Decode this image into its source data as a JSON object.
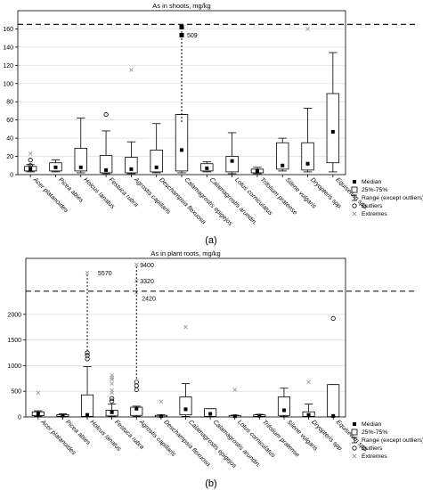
{
  "legend": {
    "median": "Median",
    "box": "25%-75%",
    "range": "Range (except outliers)",
    "outliers": "Outliers",
    "extremes": "Extremes"
  },
  "chart_data": [
    {
      "type": "box",
      "panel": "(a)",
      "title": "As in shoots, mg/kg",
      "ylim": [
        0,
        180
      ],
      "yticks": [
        0,
        20,
        40,
        60,
        80,
        100,
        120,
        140,
        160
      ],
      "threshold": 165,
      "grid": true,
      "legend_position": "bottom-right",
      "categories": [
        "Acer platanoides",
        "Picea abies",
        "Holcus lanatus",
        "Festuca rubra",
        "Agrostis capillaris",
        "Deschampsia flexuosa",
        "Calamagrostis epigejos",
        "Calamagrostis arundin.",
        "Lotus corniculatus",
        "Trifolium pratense",
        "Silene vulgaris",
        "Dryopteris spp.",
        "Equisetum spp."
      ],
      "series": [
        {
          "median": 6,
          "q1": 4,
          "q3": 9,
          "min": 3,
          "max": 11,
          "outliers": [
            10,
            16
          ],
          "extremes": [
            23
          ]
        },
        {
          "median": 8,
          "q1": 4,
          "q3": 13,
          "min": 3,
          "max": 16,
          "outliers": [],
          "extremes": []
        },
        {
          "median": 8,
          "q1": 4,
          "q3": 29,
          "min": 2,
          "max": 62,
          "outliers": [],
          "extremes": []
        },
        {
          "median": 5,
          "q1": 2,
          "q3": 21,
          "min": 1,
          "max": 48,
          "outliers": [
            66
          ],
          "extremes": []
        },
        {
          "median": 6,
          "q1": 2,
          "q3": 19,
          "min": 1,
          "max": 36,
          "outliers": [],
          "extremes": [
            115
          ]
        },
        {
          "median": 8,
          "q1": 3,
          "q3": 27,
          "min": 2,
          "max": 56,
          "outliers": [],
          "extremes": []
        },
        {
          "median": 27,
          "q1": 4,
          "q3": 66,
          "min": 2,
          "max": 66,
          "outliers": [],
          "extremes": [
            509,
            509
          ]
        },
        {
          "median": 7,
          "q1": 4,
          "q3": 12,
          "min": 3,
          "max": 14,
          "outliers": [],
          "extremes": []
        },
        {
          "median": 15,
          "q1": 3,
          "q3": 20,
          "min": 1,
          "max": 46,
          "outliers": [],
          "extremes": []
        },
        {
          "median": 4,
          "q1": 2,
          "q3": 6,
          "min": 1,
          "max": 8,
          "outliers": [],
          "extremes": []
        },
        {
          "median": 10,
          "q1": 6,
          "q3": 35,
          "min": 4,
          "max": 40,
          "outliers": [],
          "extremes": []
        },
        {
          "median": 12,
          "q1": 5,
          "q3": 35,
          "min": 3,
          "max": 73,
          "outliers": [],
          "extremes": [
            160
          ]
        },
        {
          "median": 47,
          "q1": 13,
          "q3": 89,
          "min": 3,
          "max": 134,
          "outliers": [],
          "extremes": []
        }
      ],
      "annotations": [
        "509"
      ]
    },
    {
      "type": "box",
      "panel": "(b)",
      "title": "As in plant roots, mg/kg",
      "ylim": [
        0,
        2800
      ],
      "yticks": [
        0,
        500,
        1000,
        1500,
        2000
      ],
      "threshold": 2450,
      "grid": true,
      "legend_position": "bottom-right",
      "categories": [
        "Acer platanoides",
        "Picea abies",
        "Holcus lanatus",
        "Festuca rubra",
        "Agrostis capillaris",
        "Deschampsia flexuosa",
        "Calamagrostis epigejos",
        "Calamagrostis arundin.",
        "Lotus corniculatus",
        "Trifolium pratense",
        "Silene vulgaris",
        "Dryopteris spp.",
        "Equisetum spp."
      ],
      "series": [
        {
          "median": 60,
          "q1": 25,
          "q3": 100,
          "min": 10,
          "max": 120,
          "outliers": [],
          "extremes": [
            470
          ]
        },
        {
          "median": 25,
          "q1": 10,
          "q3": 45,
          "min": 5,
          "max": 60,
          "outliers": [],
          "extremes": []
        },
        {
          "median": 40,
          "q1": 10,
          "q3": 430,
          "min": 5,
          "max": 980,
          "outliers": [
            1130,
            1200,
            1250
          ],
          "extremes": [
            5570
          ]
        },
        {
          "median": 90,
          "q1": 20,
          "q3": 130,
          "min": 10,
          "max": 250,
          "outliers": [
            310,
            360
          ],
          "extremes": [
            470,
            520,
            650,
            730,
            770,
            810
          ]
        },
        {
          "median": 160,
          "q1": 30,
          "q3": 190,
          "min": 10,
          "max": 210,
          "outliers": [
            530,
            610,
            680
          ],
          "extremes": [
            2420,
            3320,
            9400
          ]
        },
        {
          "median": 15,
          "q1": 5,
          "q3": 30,
          "min": 3,
          "max": 40,
          "outliers": [],
          "extremes": [
            300
          ]
        },
        {
          "median": 150,
          "q1": 40,
          "q3": 390,
          "min": 10,
          "max": 650,
          "outliers": [],
          "extremes": [
            1750
          ]
        },
        {
          "median": 60,
          "q1": 10,
          "q3": 160,
          "min": 5,
          "max": 160,
          "outliers": [],
          "extremes": []
        },
        {
          "median": 15,
          "q1": 5,
          "q3": 25,
          "min": 3,
          "max": 35,
          "outliers": [],
          "extremes": [
            530
          ]
        },
        {
          "median": 25,
          "q1": 10,
          "q3": 40,
          "min": 5,
          "max": 50,
          "outliers": [],
          "extremes": []
        },
        {
          "median": 130,
          "q1": 30,
          "q3": 390,
          "min": 10,
          "max": 560,
          "outliers": [],
          "extremes": []
        },
        {
          "median": 40,
          "q1": 10,
          "q3": 100,
          "min": 5,
          "max": 250,
          "outliers": [],
          "extremes": [
            680
          ]
        },
        {
          "median": 20,
          "q1": 5,
          "q3": 630,
          "min": 3,
          "max": 630,
          "outliers": [
            1920
          ],
          "extremes": []
        }
      ],
      "annotations": [
        "9400",
        "5570",
        "3320",
        "2420"
      ]
    }
  ]
}
